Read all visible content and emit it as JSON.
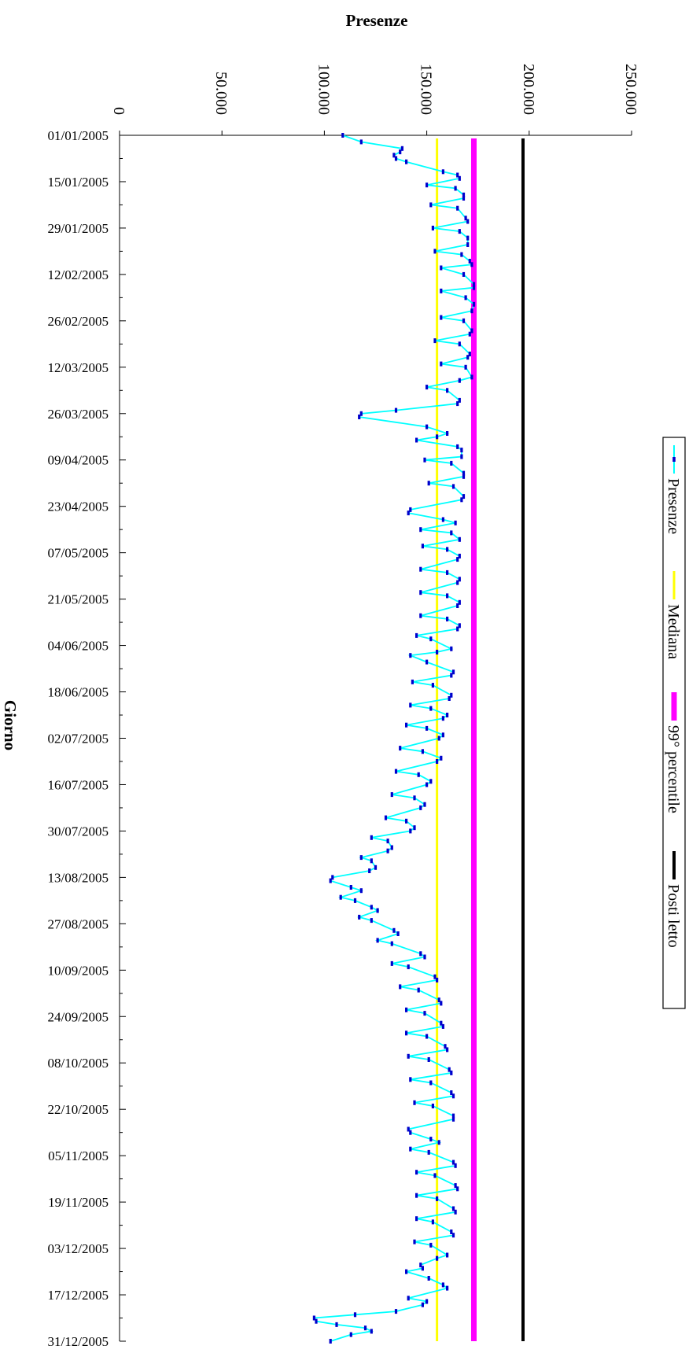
{
  "chart_data": {
    "type": "line",
    "orientation": "vertical-category",
    "title": "",
    "xlabel": "Presenze",
    "ylabel": "Giorno",
    "value_range": [
      0,
      250000
    ],
    "value_ticks": [
      {
        "value": 0,
        "label": "0"
      },
      {
        "value": 50000,
        "label": "50.000"
      },
      {
        "value": 100000,
        "label": "100.000"
      },
      {
        "value": 150000,
        "label": "150.000"
      },
      {
        "value": 200000,
        "label": "200.000"
      },
      {
        "value": 250000,
        "label": "250.000"
      }
    ],
    "date_range": [
      "2005-01-01",
      "2005-12-31"
    ],
    "date_ticks": [
      "01/01/2005",
      "15/01/2005",
      "29/01/2005",
      "12/02/2005",
      "26/02/2005",
      "12/03/2005",
      "26/03/2005",
      "09/04/2005",
      "23/04/2005",
      "07/05/2005",
      "21/05/2005",
      "04/06/2005",
      "18/06/2005",
      "02/07/2005",
      "16/07/2005",
      "30/07/2005",
      "13/08/2005",
      "27/08/2005",
      "10/09/2005",
      "24/09/2005",
      "08/10/2005",
      "22/10/2005",
      "05/11/2005",
      "19/11/2005",
      "03/12/2005",
      "17/12/2005",
      "31/12/2005"
    ],
    "grid": false,
    "legend_position": "right",
    "series": [
      {
        "name": "Presenze",
        "kind": "line-markers",
        "color": "#00FFFF",
        "marker_color": "#0000CC",
        "points": [
          [
            "2005-01-01",
            109000
          ],
          [
            "2005-01-03",
            118000
          ],
          [
            "2005-01-05",
            138000
          ],
          [
            "2005-01-06",
            137000
          ],
          [
            "2005-01-07",
            134000
          ],
          [
            "2005-01-08",
            135000
          ],
          [
            "2005-01-09",
            140000
          ],
          [
            "2005-01-12",
            158000
          ],
          [
            "2005-01-13",
            165000
          ],
          [
            "2005-01-14",
            166000
          ],
          [
            "2005-01-16",
            150000
          ],
          [
            "2005-01-17",
            164000
          ],
          [
            "2005-01-19",
            168000
          ],
          [
            "2005-01-20",
            168000
          ],
          [
            "2005-01-22",
            152000
          ],
          [
            "2005-01-23",
            165000
          ],
          [
            "2005-01-26",
            169000
          ],
          [
            "2005-01-27",
            170000
          ],
          [
            "2005-01-29",
            153000
          ],
          [
            "2005-01-30",
            166000
          ],
          [
            "2005-02-01",
            170000
          ],
          [
            "2005-02-03",
            170000
          ],
          [
            "2005-02-05",
            154000
          ],
          [
            "2005-02-06",
            167000
          ],
          [
            "2005-02-08",
            171000
          ],
          [
            "2005-02-09",
            172000
          ],
          [
            "2005-02-10",
            157000
          ],
          [
            "2005-02-12",
            168000
          ],
          [
            "2005-02-15",
            173000
          ],
          [
            "2005-02-16",
            173000
          ],
          [
            "2005-02-17",
            157000
          ],
          [
            "2005-02-19",
            169000
          ],
          [
            "2005-02-21",
            173000
          ],
          [
            "2005-02-23",
            172000
          ],
          [
            "2005-02-25",
            157000
          ],
          [
            "2005-02-26",
            168000
          ],
          [
            "2005-03-01",
            172000
          ],
          [
            "2005-03-02",
            171000
          ],
          [
            "2005-03-04",
            154000
          ],
          [
            "2005-03-05",
            166000
          ],
          [
            "2005-03-08",
            171000
          ],
          [
            "2005-03-09",
            170000
          ],
          [
            "2005-03-11",
            157000
          ],
          [
            "2005-03-12",
            169000
          ],
          [
            "2005-03-15",
            172000
          ],
          [
            "2005-03-16",
            166000
          ],
          [
            "2005-03-18",
            150000
          ],
          [
            "2005-03-19",
            160000
          ],
          [
            "2005-03-22",
            166000
          ],
          [
            "2005-03-23",
            165000
          ],
          [
            "2005-03-25",
            135000
          ],
          [
            "2005-03-26",
            118000
          ],
          [
            "2005-03-27",
            117000
          ],
          [
            "2005-03-30",
            150000
          ],
          [
            "2005-04-01",
            160000
          ],
          [
            "2005-04-02",
            155000
          ],
          [
            "2005-04-03",
            145000
          ],
          [
            "2005-04-05",
            165000
          ],
          [
            "2005-04-06",
            167000
          ],
          [
            "2005-04-08",
            167000
          ],
          [
            "2005-04-09",
            149000
          ],
          [
            "2005-04-10",
            162000
          ],
          [
            "2005-04-13",
            168000
          ],
          [
            "2005-04-14",
            168000
          ],
          [
            "2005-04-16",
            151000
          ],
          [
            "2005-04-17",
            163000
          ],
          [
            "2005-04-20",
            168000
          ],
          [
            "2005-04-21",
            167000
          ],
          [
            "2005-04-24",
            142000
          ],
          [
            "2005-04-25",
            141000
          ],
          [
            "2005-04-27",
            158000
          ],
          [
            "2005-04-28",
            164000
          ],
          [
            "2005-04-30",
            147000
          ],
          [
            "2005-05-01",
            162000
          ],
          [
            "2005-05-03",
            166000
          ],
          [
            "2005-05-05",
            148000
          ],
          [
            "2005-05-06",
            160000
          ],
          [
            "2005-05-08",
            166000
          ],
          [
            "2005-05-09",
            165000
          ],
          [
            "2005-05-12",
            147000
          ],
          [
            "2005-05-13",
            160000
          ],
          [
            "2005-05-15",
            166000
          ],
          [
            "2005-05-16",
            165000
          ],
          [
            "2005-05-19",
            147000
          ],
          [
            "2005-05-20",
            160000
          ],
          [
            "2005-05-22",
            166000
          ],
          [
            "2005-05-23",
            165000
          ],
          [
            "2005-05-26",
            147000
          ],
          [
            "2005-05-27",
            160000
          ],
          [
            "2005-05-29",
            166000
          ],
          [
            "2005-05-30",
            165000
          ],
          [
            "2005-06-01",
            145000
          ],
          [
            "2005-06-02",
            152000
          ],
          [
            "2005-06-05",
            162000
          ],
          [
            "2005-06-06",
            155000
          ],
          [
            "2005-06-07",
            142000
          ],
          [
            "2005-06-09",
            150000
          ],
          [
            "2005-06-12",
            163000
          ],
          [
            "2005-06-13",
            162000
          ],
          [
            "2005-06-15",
            143000
          ],
          [
            "2005-06-16",
            153000
          ],
          [
            "2005-06-19",
            162000
          ],
          [
            "2005-06-20",
            161000
          ],
          [
            "2005-06-22",
            142000
          ],
          [
            "2005-06-23",
            152000
          ],
          [
            "2005-06-25",
            160000
          ],
          [
            "2005-06-26",
            158000
          ],
          [
            "2005-06-28",
            140000
          ],
          [
            "2005-06-29",
            150000
          ],
          [
            "2005-07-01",
            158000
          ],
          [
            "2005-07-02",
            156000
          ],
          [
            "2005-07-05",
            137000
          ],
          [
            "2005-07-06",
            148000
          ],
          [
            "2005-07-08",
            157000
          ],
          [
            "2005-07-09",
            155000
          ],
          [
            "2005-07-12",
            135000
          ],
          [
            "2005-07-13",
            146000
          ],
          [
            "2005-07-15",
            152000
          ],
          [
            "2005-07-16",
            150000
          ],
          [
            "2005-07-19",
            133000
          ],
          [
            "2005-07-20",
            144000
          ],
          [
            "2005-07-22",
            149000
          ],
          [
            "2005-07-23",
            147000
          ],
          [
            "2005-07-26",
            130000
          ],
          [
            "2005-07-27",
            140000
          ],
          [
            "2005-07-29",
            144000
          ],
          [
            "2005-07-30",
            142000
          ],
          [
            "2005-08-01",
            123000
          ],
          [
            "2005-08-02",
            131000
          ],
          [
            "2005-08-04",
            133000
          ],
          [
            "2005-08-05",
            131000
          ],
          [
            "2005-08-07",
            118000
          ],
          [
            "2005-08-08",
            123000
          ],
          [
            "2005-08-10",
            125000
          ],
          [
            "2005-08-11",
            122000
          ],
          [
            "2005-08-13",
            104000
          ],
          [
            "2005-08-14",
            103000
          ],
          [
            "2005-08-16",
            113000
          ],
          [
            "2005-08-17",
            118000
          ],
          [
            "2005-08-19",
            108000
          ],
          [
            "2005-08-20",
            115000
          ],
          [
            "2005-08-22",
            123000
          ],
          [
            "2005-08-23",
            126000
          ],
          [
            "2005-08-25",
            117000
          ],
          [
            "2005-08-26",
            123000
          ],
          [
            "2005-08-29",
            134000
          ],
          [
            "2005-08-30",
            136000
          ],
          [
            "2005-09-01",
            126000
          ],
          [
            "2005-09-02",
            133000
          ],
          [
            "2005-09-05",
            147000
          ],
          [
            "2005-09-06",
            149000
          ],
          [
            "2005-09-08",
            133000
          ],
          [
            "2005-09-09",
            141000
          ],
          [
            "2005-09-12",
            154000
          ],
          [
            "2005-09-13",
            155000
          ],
          [
            "2005-09-15",
            137000
          ],
          [
            "2005-09-16",
            146000
          ],
          [
            "2005-09-19",
            156000
          ],
          [
            "2005-09-20",
            157000
          ],
          [
            "2005-09-22",
            140000
          ],
          [
            "2005-09-23",
            149000
          ],
          [
            "2005-09-26",
            157000
          ],
          [
            "2005-09-27",
            158000
          ],
          [
            "2005-09-29",
            140000
          ],
          [
            "2005-09-30",
            150000
          ],
          [
            "2005-10-03",
            159000
          ],
          [
            "2005-10-04",
            160000
          ],
          [
            "2005-10-06",
            141000
          ],
          [
            "2005-10-07",
            151000
          ],
          [
            "2005-10-10",
            161000
          ],
          [
            "2005-10-11",
            162000
          ],
          [
            "2005-10-13",
            142000
          ],
          [
            "2005-10-14",
            152000
          ],
          [
            "2005-10-17",
            162000
          ],
          [
            "2005-10-18",
            163000
          ],
          [
            "2005-10-20",
            144000
          ],
          [
            "2005-10-21",
            153000
          ],
          [
            "2005-10-24",
            163000
          ],
          [
            "2005-10-25",
            163000
          ],
          [
            "2005-10-28",
            141000
          ],
          [
            "2005-10-29",
            142000
          ],
          [
            "2005-10-31",
            152000
          ],
          [
            "2005-11-01",
            156000
          ],
          [
            "2005-11-03",
            142000
          ],
          [
            "2005-11-04",
            151000
          ],
          [
            "2005-11-07",
            163000
          ],
          [
            "2005-11-08",
            164000
          ],
          [
            "2005-11-10",
            145000
          ],
          [
            "2005-11-11",
            154000
          ],
          [
            "2005-11-14",
            164000
          ],
          [
            "2005-11-15",
            165000
          ],
          [
            "2005-11-17",
            145000
          ],
          [
            "2005-11-18",
            155000
          ],
          [
            "2005-11-21",
            163000
          ],
          [
            "2005-11-22",
            164000
          ],
          [
            "2005-11-24",
            145000
          ],
          [
            "2005-11-25",
            153000
          ],
          [
            "2005-11-28",
            162000
          ],
          [
            "2005-11-29",
            163000
          ],
          [
            "2005-12-01",
            144000
          ],
          [
            "2005-12-02",
            152000
          ],
          [
            "2005-12-05",
            160000
          ],
          [
            "2005-12-06",
            155000
          ],
          [
            "2005-12-08",
            147000
          ],
          [
            "2005-12-09",
            148000
          ],
          [
            "2005-12-10",
            140000
          ],
          [
            "2005-12-12",
            151000
          ],
          [
            "2005-12-14",
            158000
          ],
          [
            "2005-12-15",
            160000
          ],
          [
            "2005-12-18",
            141000
          ],
          [
            "2005-12-19",
            150000
          ],
          [
            "2005-12-20",
            148000
          ],
          [
            "2005-12-22",
            135000
          ],
          [
            "2005-12-23",
            115000
          ],
          [
            "2005-12-24",
            95000
          ],
          [
            "2005-12-25",
            96000
          ],
          [
            "2005-12-26",
            106000
          ],
          [
            "2005-12-27",
            120000
          ],
          [
            "2005-12-28",
            123000
          ],
          [
            "2005-12-29",
            113000
          ],
          [
            "2005-12-31",
            103000
          ]
        ]
      },
      {
        "name": "Mediana",
        "kind": "constant",
        "value": 155000,
        "color": "#FFFF00"
      },
      {
        "name": "99° percentile",
        "kind": "constant",
        "value": 173000,
        "color": "#FF00FF"
      },
      {
        "name": "Posti letto",
        "kind": "constant",
        "value": 197000,
        "color": "#000000"
      }
    ]
  }
}
